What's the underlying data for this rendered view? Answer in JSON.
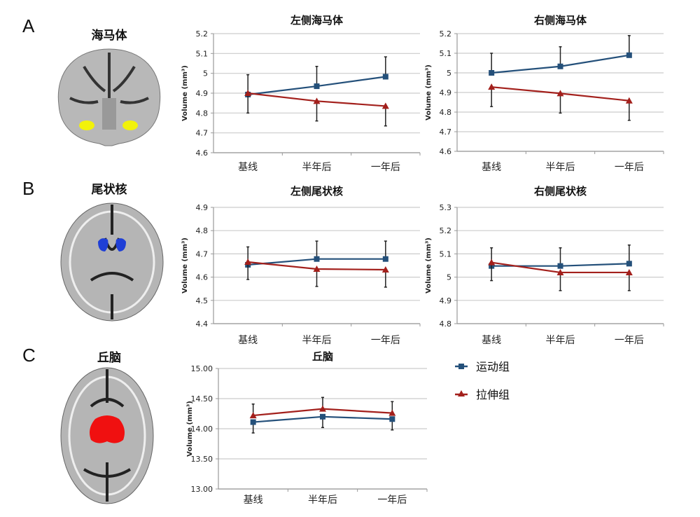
{
  "panels": [
    {
      "letter": "A",
      "region": "海马体",
      "brain_color": "#f2f20a"
    },
    {
      "letter": "B",
      "region": "尾状核",
      "brain_color": "#1f3fd6"
    },
    {
      "letter": "C",
      "region": "丘脑",
      "brain_color": "#f01010"
    }
  ],
  "legend": [
    {
      "name": "运动组",
      "color": "#24507a",
      "marker": "square"
    },
    {
      "name": "拉伸组",
      "color": "#a3201c",
      "marker": "triangle"
    }
  ],
  "chart_data": [
    {
      "type": "line",
      "title": "左侧海马体",
      "ylabel": "Volume (mm³)",
      "categories": [
        "基线",
        "半年后",
        "一年后"
      ],
      "ylim": [
        4.6,
        5.2
      ],
      "yticks": [
        "4.6",
        "4.7",
        "4.8",
        "4.9",
        "5",
        "5.1",
        "5.2"
      ],
      "grid": true,
      "series": [
        {
          "name": "运动组",
          "values": [
            4.893,
            4.935,
            4.983
          ],
          "error": [
            0.1,
            0.1,
            0.1
          ],
          "error_dir": "up"
        },
        {
          "name": "拉伸组",
          "values": [
            4.9,
            4.86,
            4.835
          ],
          "error": [
            0.1,
            0.1,
            0.1
          ],
          "error_dir": "down"
        }
      ]
    },
    {
      "type": "line",
      "title": "右侧海马体",
      "ylabel": "Volume (mm³)",
      "categories": [
        "基线",
        "半年后",
        "一年后"
      ],
      "ylim": [
        4.6,
        5.2
      ],
      "yticks": [
        "4.6",
        "4.7",
        "4.8",
        "4.9",
        "5",
        "5.1",
        "5.2"
      ],
      "grid": true,
      "series": [
        {
          "name": "运动组",
          "values": [
            5.0,
            5.033,
            5.09
          ],
          "error": [
            0.1,
            0.1,
            0.1
          ],
          "error_dir": "up"
        },
        {
          "name": "拉伸组",
          "values": [
            4.928,
            4.895,
            4.858
          ],
          "error": [
            0.1,
            0.1,
            0.1
          ],
          "error_dir": "down"
        }
      ]
    },
    {
      "type": "line",
      "title": "左侧尾状核",
      "ylabel": "Volume (mm³)",
      "categories": [
        "基线",
        "半年后",
        "一年后"
      ],
      "ylim": [
        4.4,
        4.9
      ],
      "yticks": [
        "4.4",
        "4.5",
        "4.6",
        "4.7",
        "4.8",
        "4.9"
      ],
      "grid": true,
      "series": [
        {
          "name": "运动组",
          "values": [
            4.653,
            4.678,
            4.678
          ],
          "error": [
            0.077,
            0.077,
            0.077
          ],
          "error_dir": "up"
        },
        {
          "name": "拉伸组",
          "values": [
            4.665,
            4.635,
            4.632
          ],
          "error": [
            0.075,
            0.075,
            0.075
          ],
          "error_dir": "down"
        }
      ]
    },
    {
      "type": "line",
      "title": "右侧尾状核",
      "ylabel": "Volume (mm³)",
      "categories": [
        "基线",
        "半年后",
        "一年后"
      ],
      "ylim": [
        4.8,
        5.3
      ],
      "yticks": [
        "4.8",
        "4.9",
        "5",
        "5.1",
        "5.2",
        "5.3"
      ],
      "grid": true,
      "series": [
        {
          "name": "运动组",
          "values": [
            5.048,
            5.048,
            5.058
          ],
          "error": [
            0.078,
            0.078,
            0.08
          ],
          "error_dir": "up"
        },
        {
          "name": "拉伸组",
          "values": [
            5.063,
            5.02,
            5.02
          ],
          "error": [
            0.078,
            0.078,
            0.078
          ],
          "error_dir": "down"
        }
      ]
    },
    {
      "type": "line",
      "title": "丘脑",
      "ylabel": "Volume (mm³)",
      "categories": [
        "基线",
        "半年后",
        "一年后"
      ],
      "ylim": [
        13.0,
        15.0
      ],
      "yticks": [
        "13.00",
        "13.50",
        "14.00",
        "14.50",
        "15.00"
      ],
      "grid": true,
      "series": [
        {
          "name": "运动组",
          "values": [
            14.11,
            14.2,
            14.16
          ],
          "error": [
            0.18,
            0.18,
            0.18
          ],
          "error_dir": "down"
        },
        {
          "name": "拉伸组",
          "values": [
            14.22,
            14.33,
            14.26
          ],
          "error": [
            0.19,
            0.19,
            0.19
          ],
          "error_dir": "up"
        }
      ]
    }
  ]
}
